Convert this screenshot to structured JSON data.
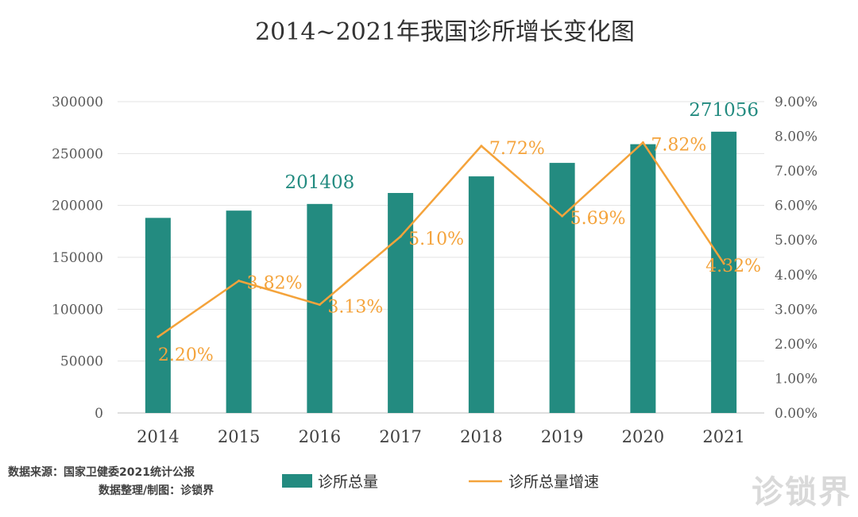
{
  "chart_data": {
    "type": "bar+line",
    "title": "2014~2021年我国诊所增长变化图",
    "categories": [
      "2014",
      "2015",
      "2016",
      "2017",
      "2018",
      "2019",
      "2020",
      "2021"
    ],
    "series": [
      {
        "name": "诊所总量",
        "type": "bar",
        "axis": "left",
        "values": [
          188000,
          195000,
          201408,
          212000,
          228000,
          241000,
          259000,
          271056
        ],
        "color": "#238b80"
      },
      {
        "name": "诊所总量增速",
        "type": "line",
        "axis": "right",
        "values": [
          2.2,
          3.82,
          3.13,
          5.1,
          7.72,
          5.69,
          7.82,
          4.32
        ],
        "labels": [
          "2.20%",
          "3.82%",
          "3.13%",
          "5.10%",
          "7.72%",
          "5.69%",
          "7.82%",
          "4.32%"
        ],
        "color": "#f4a33b"
      }
    ],
    "bar_value_labels": [
      {
        "index": 2,
        "text": "201408"
      },
      {
        "index": 7,
        "text": "271056"
      }
    ],
    "y_left": {
      "min": 0,
      "max": 300000,
      "ticks": [
        "0",
        "50000",
        "100000",
        "150000",
        "200000",
        "250000",
        "300000"
      ]
    },
    "y_right": {
      "min": 0,
      "max": 9,
      "ticks": [
        "0.00%",
        "1.00%",
        "2.00%",
        "3.00%",
        "4.00%",
        "5.00%",
        "6.00%",
        "7.00%",
        "8.00%",
        "9.00%"
      ]
    },
    "grid": true,
    "legend_position": "bottom"
  },
  "source": {
    "line1": "数据来源：国家卫健委2021统计公报",
    "line2": "数据整理/制图：诊锁界"
  },
  "watermark": "诊锁界"
}
